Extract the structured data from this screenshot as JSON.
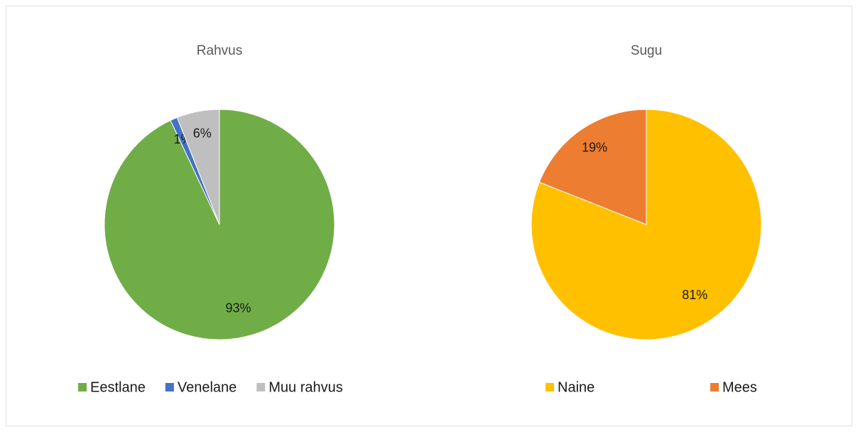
{
  "chart_data": [
    {
      "type": "pie",
      "title": "Rahvus",
      "categories": [
        "Eestlane",
        "Venelane",
        "Muu rahvus"
      ],
      "values": [
        93,
        1,
        6
      ],
      "value_labels": [
        "93%",
        "1%",
        "6%"
      ],
      "colors": [
        "#70ad47",
        "#4472c4",
        "#bfbfbf"
      ],
      "legend": "bottom"
    },
    {
      "type": "pie",
      "title": "Sugu",
      "categories": [
        "Naine",
        "Mees"
      ],
      "values": [
        81,
        19
      ],
      "value_labels": [
        "81%",
        "19%"
      ],
      "colors": [
        "#ffc000",
        "#ed7d31"
      ],
      "legend": "bottom"
    }
  ]
}
